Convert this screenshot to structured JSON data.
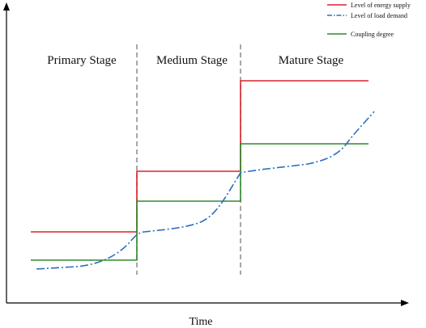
{
  "legend": [
    {
      "label": "Level of energy supply",
      "color": "#d9232a",
      "style": "solid"
    },
    {
      "label": "Level of load demand",
      "color": "#2b6fc2",
      "style": "dash-dot"
    },
    {
      "label": "Coupling degree",
      "color": "#2e8a2e",
      "style": "solid"
    }
  ],
  "stages": [
    {
      "label": "Primary Stage"
    },
    {
      "label": "Medium Stage"
    },
    {
      "label": "Mature Stage"
    }
  ],
  "x_axis": {
    "label": "Time"
  },
  "colors": {
    "supply": "#d9232a",
    "demand": "#2b6fc2",
    "coupling": "#2e8a2e",
    "divider": "#8a8a8a",
    "axis": "#000000"
  }
}
